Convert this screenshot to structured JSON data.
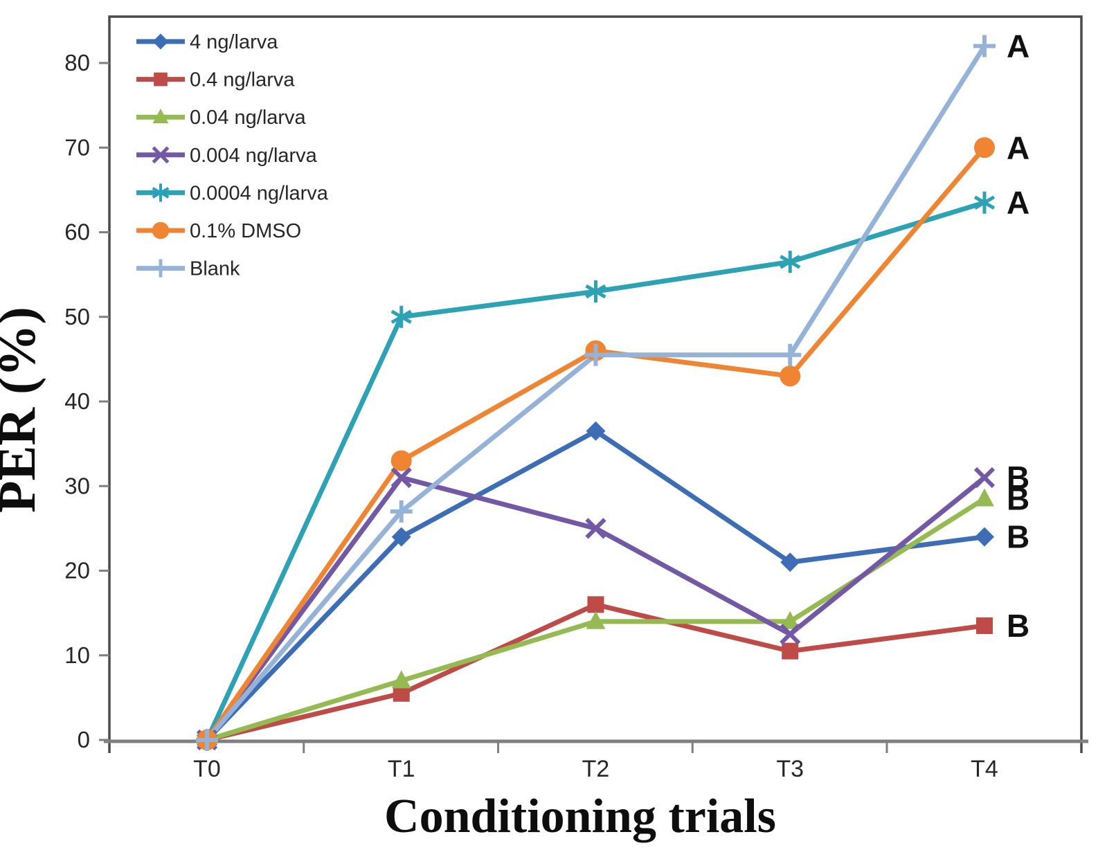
{
  "chart_data": {
    "type": "line",
    "title": "",
    "xlabel": "Conditioning trials",
    "ylabel": "PER (%)",
    "categories": [
      "T0",
      "T1",
      "T2",
      "T3",
      "T4"
    ],
    "y_ticks": [
      0,
      10,
      20,
      30,
      40,
      50,
      60,
      70,
      80
    ],
    "ylim": [
      0,
      85
    ],
    "grid": "off",
    "legend_position": "top-left-inside",
    "series": [
      {
        "name": "4 ng/larva",
        "color": "#3D6EB5",
        "marker": "diamond",
        "values": [
          0,
          24,
          36.5,
          21,
          24
        ],
        "annotation": "B"
      },
      {
        "name": "0.4 ng/larva",
        "color": "#BE4B47",
        "marker": "square",
        "values": [
          0,
          5.5,
          16,
          10.5,
          13.5
        ],
        "annotation": "B"
      },
      {
        "name": "0.04 ng/larva",
        "color": "#95BA52",
        "marker": "triangle",
        "values": [
          0,
          7,
          14,
          14,
          28.5
        ],
        "annotation": "B"
      },
      {
        "name": "0.004 ng/larva",
        "color": "#7258A5",
        "marker": "x",
        "values": [
          0,
          31,
          25,
          12.5,
          31
        ],
        "annotation": "B"
      },
      {
        "name": "0.0004 ng/larva",
        "color": "#2CA2B4",
        "marker": "asterisk",
        "values": [
          0,
          50,
          53,
          56.5,
          63.5
        ],
        "annotation": "A"
      },
      {
        "name": "0.1% DMSO",
        "color": "#EF8532",
        "marker": "circle",
        "values": [
          0,
          33,
          46,
          43,
          70
        ],
        "annotation": "A"
      },
      {
        "name": "Blank",
        "color": "#95B3D9",
        "marker": "plus",
        "values": [
          0,
          27,
          45.5,
          45.5,
          82
        ],
        "annotation": "A"
      }
    ],
    "colors": {
      "frame": "#4A4A4A",
      "axis_line": "#7F7F7F",
      "tick": "#7F7F7F",
      "tick_label": "#262626",
      "legend_text": "#262626",
      "annotation_text": "#111111"
    }
  }
}
